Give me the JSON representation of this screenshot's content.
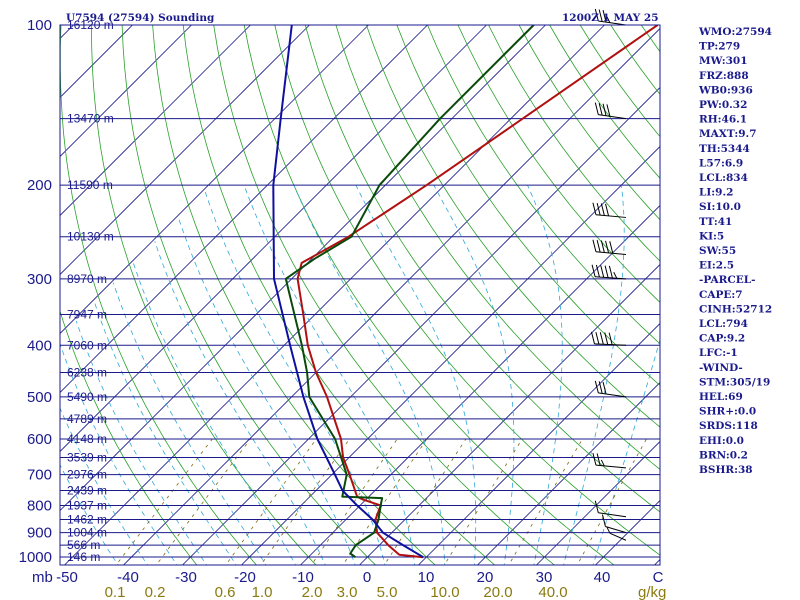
{
  "header": {
    "title": "U7594 (27594) Sounding",
    "time": "1200Z  1 MAY 25"
  },
  "indices": [
    "WMO:27594",
    "TP:279",
    "MW:301",
    "FRZ:888",
    "WB0:936",
    "PW:0.32",
    "RH:46.1",
    "MAXT:9.7",
    "TH:5344",
    "L57:6.9",
    "LCL:834",
    "LI:9.2",
    "SI:10.0",
    "TT:41",
    "KI:5",
    "SW:55",
    "EI:2.5",
    "-PARCEL-",
    "CAPE:7",
    "CINH:52712",
    "LCL:794",
    "CAP:9.2",
    "LFC:-1",
    "-WIND-",
    "STM:305/19",
    "HEL:69",
    "SHR+:0.0",
    "SRDS:118",
    "EHI:0.0",
    "BRN:0.2",
    "BSHR:38"
  ],
  "colors": {
    "frame": "#1a1a8c",
    "isobar": "#1a1a8c",
    "isotherm": "#1a1a8c",
    "dry_adiabat": "#2aa02a",
    "moist_adiabat": "#30a8d8",
    "mixing_ratio": "#7a6a10",
    "temperature": "#b01010",
    "dewpoint": "#0a4a0a",
    "parcel": "#1010a0"
  },
  "chart_data": {
    "type": "skew-t",
    "xlabel_left": "mb",
    "y_label": "mb",
    "mixing_ratio_unit": "g/kg",
    "pressure_levels": [
      100,
      200,
      300,
      400,
      500,
      600,
      700,
      800,
      900,
      1000
    ],
    "pressure_labels": [
      "100",
      "200",
      "300",
      "400",
      "500",
      "600",
      "700",
      "800",
      "900",
      "1000"
    ],
    "temperature_ticks": [
      "-50",
      "-40",
      "-30",
      "-20",
      "-10",
      "0",
      "10",
      "20",
      "30",
      "40",
      "C"
    ],
    "mixing_ratio_ticks": [
      "0.1",
      "0.2",
      "0.6",
      "1.0",
      "2.0",
      "3.0",
      "5.0",
      "10.0",
      "20.0",
      "40.0"
    ],
    "height_labels": [
      {
        "p": 100,
        "label": "16120 m"
      },
      {
        "p": 150,
        "label": "13470 m"
      },
      {
        "p": 200,
        "label": "11590 m"
      },
      {
        "p": 250,
        "label": "10130 m"
      },
      {
        "p": 300,
        "label": "8970 m"
      },
      {
        "p": 350,
        "label": "7947 m"
      },
      {
        "p": 400,
        "label": "7060 m"
      },
      {
        "p": 450,
        "label": "6238 m"
      },
      {
        "p": 500,
        "label": "5490 m"
      },
      {
        "p": 550,
        "label": "4789 m"
      },
      {
        "p": 600,
        "label": "4148 m"
      },
      {
        "p": 650,
        "label": "3539 m"
      },
      {
        "p": 700,
        "label": "2976 m"
      },
      {
        "p": 750,
        "label": "2439 m"
      },
      {
        "p": 800,
        "label": "1937 m"
      },
      {
        "p": 850,
        "label": "1462 m"
      },
      {
        "p": 900,
        "label": "1004 m"
      },
      {
        "p": 950,
        "label": "566 m"
      },
      {
        "p": 1000,
        "label": "146 m"
      }
    ],
    "series": [
      {
        "kind": "temperature",
        "points": [
          [
            1001,
            9.5
          ],
          [
            990,
            5.0
          ],
          [
            950,
            1.5
          ],
          [
            900,
            -2.5
          ],
          [
            850,
            -5.0
          ],
          [
            800,
            -6.5
          ],
          [
            780,
            -10.5
          ],
          [
            770,
            -12.0
          ],
          [
            700,
            -17.0
          ],
          [
            650,
            -21.0
          ],
          [
            600,
            -24.5
          ],
          [
            500,
            -34.0
          ],
          [
            450,
            -40.0
          ],
          [
            400,
            -46.0
          ],
          [
            350,
            -52.0
          ],
          [
            300,
            -59.0
          ],
          [
            280,
            -61.0
          ],
          [
            250,
            -57.5
          ],
          [
            200,
            -53.0
          ],
          [
            150,
            -48.0
          ],
          [
            100,
            -41.0
          ]
        ]
      },
      {
        "kind": "dewpoint",
        "points": [
          [
            1001,
            -2.0
          ],
          [
            985,
            -3.5
          ],
          [
            950,
            -4.0
          ],
          [
            900,
            -3.0
          ],
          [
            850,
            -4.5
          ],
          [
            800,
            -6.5
          ],
          [
            775,
            -7.5
          ],
          [
            770,
            -14.5
          ],
          [
            700,
            -17.5
          ],
          [
            600,
            -25.5
          ],
          [
            500,
            -37.0
          ],
          [
            450,
            -41.5
          ],
          [
            400,
            -47.0
          ],
          [
            300,
            -61.0
          ],
          [
            275,
            -59.5
          ],
          [
            250,
            -57.0
          ],
          [
            200,
            -61.0
          ],
          [
            150,
            -62.0
          ],
          [
            100,
            -62.0
          ]
        ]
      },
      {
        "kind": "parcel",
        "points": [
          [
            1001,
            9.5
          ],
          [
            950,
            4.0
          ],
          [
            900,
            -1.5
          ],
          [
            850,
            -5.5
          ],
          [
            800,
            -10.5
          ],
          [
            750,
            -15.5
          ],
          [
            700,
            -19.5
          ],
          [
            600,
            -28.5
          ],
          [
            500,
            -38.0
          ],
          [
            400,
            -49.0
          ],
          [
            300,
            -63.0
          ],
          [
            200,
            -79.0
          ],
          [
            150,
            -89.0
          ],
          [
            100,
            -103.0
          ]
        ]
      }
    ],
    "wind_barbs": [
      {
        "p": 100,
        "dir": 300,
        "speed_kt": 35
      },
      {
        "p": 150,
        "dir": 300,
        "speed_kt": 40
      },
      {
        "p": 230,
        "dir": 290,
        "speed_kt": 40
      },
      {
        "p": 270,
        "dir": 290,
        "speed_kt": 50
      },
      {
        "p": 300,
        "dir": 285,
        "speed_kt": 55
      },
      {
        "p": 400,
        "dir": 280,
        "speed_kt": 50
      },
      {
        "p": 500,
        "dir": 300,
        "speed_kt": 30
      },
      {
        "p": 680,
        "dir": 290,
        "speed_kt": 25
      },
      {
        "p": 840,
        "dir": 300,
        "speed_kt": 10
      },
      {
        "p": 900,
        "dir": 320,
        "speed_kt": 10
      },
      {
        "p": 930,
        "dir": 330,
        "speed_kt": 5
      }
    ]
  }
}
